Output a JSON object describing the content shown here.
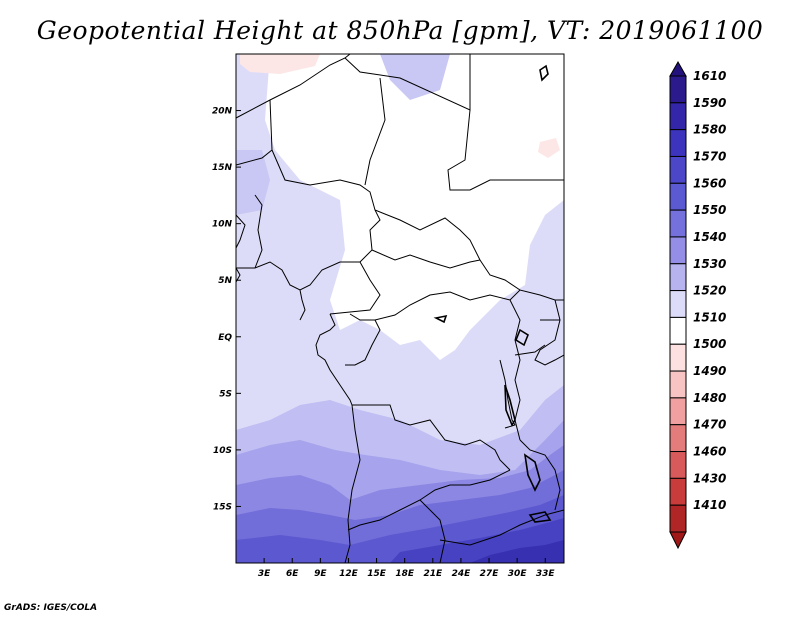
{
  "title": "Geopotential Height at 850hPa [gpm], VT: 2019061100",
  "footer": "GrADS: IGES/COLA",
  "map": {
    "lon_range": [
      0,
      35
    ],
    "lat_range": [
      -20,
      25
    ],
    "lat_ticks": [
      {
        "value": 20,
        "label": "20N"
      },
      {
        "value": 15,
        "label": "15N"
      },
      {
        "value": 10,
        "label": "10N"
      },
      {
        "value": 5,
        "label": "5N"
      },
      {
        "value": 0,
        "label": "EQ"
      },
      {
        "value": -5,
        "label": "5S"
      },
      {
        "value": -10,
        "label": "10S"
      },
      {
        "value": -15,
        "label": "15S"
      }
    ],
    "lon_ticks": [
      {
        "value": 3,
        "label": "3E"
      },
      {
        "value": 6,
        "label": "6E"
      },
      {
        "value": 9,
        "label": "9E"
      },
      {
        "value": 12,
        "label": "12E"
      },
      {
        "value": 15,
        "label": "15E"
      },
      {
        "value": 18,
        "label": "18E"
      },
      {
        "value": 21,
        "label": "21E"
      },
      {
        "value": 24,
        "label": "24E"
      },
      {
        "value": 27,
        "label": "27E"
      },
      {
        "value": 30,
        "label": "30E"
      },
      {
        "value": 33,
        "label": "33E"
      }
    ]
  },
  "colorbar": {
    "levels": [
      {
        "label": "1610",
        "color": "#2a1a8c"
      },
      {
        "label": "1590",
        "color": "#3326a8"
      },
      {
        "label": "1580",
        "color": "#3d34bd"
      },
      {
        "label": "1570",
        "color": "#4c46c9"
      },
      {
        "label": "1560",
        "color": "#5c5ad2"
      },
      {
        "label": "1550",
        "color": "#7470dc"
      },
      {
        "label": "1540",
        "color": "#948ee6"
      },
      {
        "label": "1530",
        "color": "#b6b3ef"
      },
      {
        "label": "1520",
        "color": "#dddcf8"
      },
      {
        "label": "1510",
        "color": "#ffffff"
      },
      {
        "label": "1500",
        "color": "#fde0e0"
      },
      {
        "label": "1490",
        "color": "#f8c3c3"
      },
      {
        "label": "1480",
        "color": "#f0a0a0"
      },
      {
        "label": "1470",
        "color": "#e47c7c"
      },
      {
        "label": "1460",
        "color": "#d85a5a"
      },
      {
        "label": "1430",
        "color": "#c83c3c"
      },
      {
        "label": "1410",
        "color": "#b02626"
      }
    ],
    "top_color": "#24127c",
    "bottom_color": "#a01818"
  }
}
